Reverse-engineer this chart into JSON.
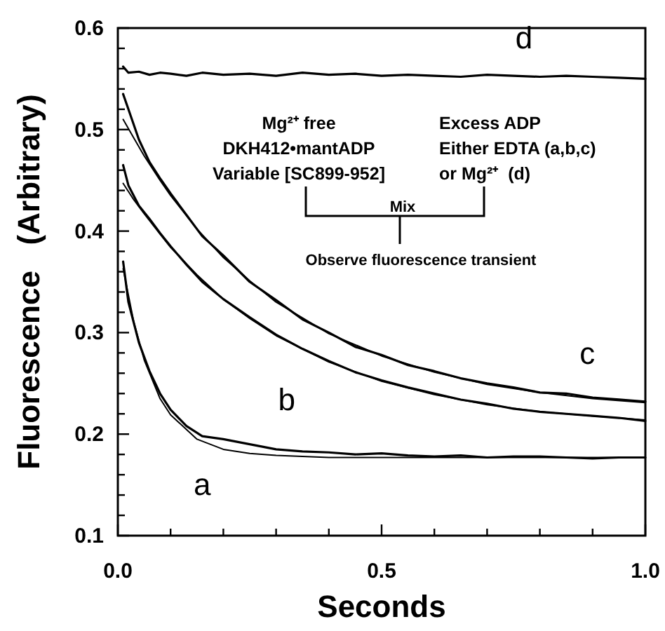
{
  "chart_data": {
    "type": "line",
    "xlabel": "Seconds",
    "ylabel": "Fluorescence   (Arbitrary)",
    "x": [
      0.01,
      0.02,
      0.04,
      0.06,
      0.08,
      0.1,
      0.13,
      0.16,
      0.2,
      0.25,
      0.3,
      0.35,
      0.4,
      0.45,
      0.5,
      0.55,
      0.6,
      0.65,
      0.7,
      0.75,
      0.8,
      0.85,
      0.9,
      0.95,
      1.0
    ],
    "series": [
      {
        "name": "d",
        "color": "#000000",
        "values": [
          0.562,
          0.556,
          0.557,
          0.554,
          0.556,
          0.555,
          0.553,
          0.556,
          0.554,
          0.555,
          0.553,
          0.556,
          0.554,
          0.555,
          0.553,
          0.554,
          0.553,
          0.552,
          0.554,
          0.553,
          0.552,
          0.553,
          0.552,
          0.551,
          0.55
        ]
      },
      {
        "name": "c",
        "color": "#000000",
        "values": [
          0.535,
          0.52,
          0.49,
          0.468,
          0.452,
          0.437,
          0.416,
          0.395,
          0.376,
          0.35,
          0.332,
          0.313,
          0.3,
          0.286,
          0.278,
          0.268,
          0.262,
          0.255,
          0.25,
          0.246,
          0.241,
          0.24,
          0.236,
          0.234,
          0.232
        ]
      },
      {
        "name": "b",
        "color": "#000000",
        "values": [
          0.465,
          0.445,
          0.425,
          0.412,
          0.398,
          0.385,
          0.367,
          0.35,
          0.333,
          0.315,
          0.298,
          0.284,
          0.272,
          0.261,
          0.253,
          0.246,
          0.24,
          0.234,
          0.23,
          0.225,
          0.222,
          0.22,
          0.218,
          0.216,
          0.213
        ]
      },
      {
        "name": "a",
        "color": "#000000",
        "values": [
          0.37,
          0.33,
          0.29,
          0.262,
          0.24,
          0.224,
          0.208,
          0.198,
          0.195,
          0.19,
          0.185,
          0.183,
          0.182,
          0.18,
          0.181,
          0.179,
          0.178,
          0.179,
          0.177,
          0.178,
          0.178,
          0.177,
          0.176,
          0.177,
          0.177
        ]
      },
      {
        "color": "#000000",
        "x": [
          0.01,
          0.03,
          0.05,
          0.08,
          0.1,
          0.15,
          0.2,
          0.25,
          0.3,
          0.4,
          0.5,
          0.6,
          0.7,
          0.8,
          0.9,
          1.0
        ],
        "values": [
          0.51,
          0.492,
          0.474,
          0.45,
          0.435,
          0.402,
          0.374,
          0.351,
          0.33,
          0.299,
          0.277,
          0.261,
          0.249,
          0.241,
          0.235,
          0.231
        ]
      },
      {
        "color": "#000000",
        "x": [
          0.01,
          0.03,
          0.05,
          0.08,
          0.1,
          0.15,
          0.2,
          0.25,
          0.3,
          0.4,
          0.5,
          0.6,
          0.7,
          0.8,
          0.9,
          1.0
        ],
        "values": [
          0.447,
          0.431,
          0.417,
          0.397,
          0.384,
          0.357,
          0.333,
          0.314,
          0.297,
          0.271,
          0.252,
          0.239,
          0.229,
          0.222,
          0.218,
          0.214
        ]
      },
      {
        "color": "#000000",
        "x": [
          0.01,
          0.03,
          0.05,
          0.08,
          0.1,
          0.15,
          0.2,
          0.25,
          0.3,
          0.4,
          0.5,
          0.6,
          0.7,
          0.8,
          0.9,
          1.0
        ],
        "values": [
          0.363,
          0.311,
          0.273,
          0.235,
          0.219,
          0.195,
          0.185,
          0.181,
          0.179,
          0.177,
          0.177,
          0.177,
          0.177,
          0.177,
          0.177,
          0.177
        ]
      }
    ],
    "xlim": [
      0,
      1
    ],
    "ylim": [
      0.1,
      0.6
    ],
    "xticks": [
      {
        "value": 0,
        "label": "0.0"
      },
      {
        "value": 0.1,
        "label": null
      },
      {
        "value": 0.2,
        "label": null
      },
      {
        "value": 0.3,
        "label": null
      },
      {
        "value": 0.4,
        "label": null
      },
      0.5,
      {
        "value": 0.6,
        "label": null
      },
      {
        "value": 0.7,
        "label": null
      },
      {
        "value": 0.8,
        "label": null
      },
      {
        "value": 0.9,
        "label": null
      },
      {
        "value": 1,
        "label": "1.0"
      }
    ],
    "yticks": [
      0.1,
      {
        "value": 0.12,
        "label": null
      },
      {
        "value": 0.14,
        "label": null
      },
      {
        "value": 0.16,
        "label": null
      },
      {
        "value": 0.18,
        "label": null
      },
      0.2,
      {
        "value": 0.22,
        "label": null
      },
      {
        "value": 0.24,
        "label": null
      },
      {
        "value": 0.26,
        "label": null
      },
      {
        "value": 0.28,
        "label": null
      },
      0.3,
      {
        "value": 0.32,
        "label": null
      },
      {
        "value": 0.34,
        "label": null
      },
      {
        "value": 0.36,
        "label": null
      },
      {
        "value": 0.38,
        "label": null
      },
      0.4,
      {
        "value": 0.42,
        "label": null
      },
      {
        "value": 0.44,
        "label": null
      },
      {
        "value": 0.46,
        "label": null
      },
      {
        "value": 0.48,
        "label": null
      },
      0.5,
      {
        "value": 0.52,
        "label": null
      },
      {
        "value": 0.54,
        "label": null
      },
      {
        "value": 0.56,
        "label": null
      },
      {
        "value": 0.58,
        "label": null
      },
      0.6
    ],
    "marker": "none",
    "line_style": "solid",
    "grid": false,
    "annotations": [
      "Mg²⁺ free",
      "DKH412•mantADP",
      "Variable [SC899-952]",
      "Excess ADP",
      "Either EDTA (a,b,c)",
      "or Mg²⁺  (d)",
      "Mix",
      "Observe fluorescence transient"
    ]
  }
}
